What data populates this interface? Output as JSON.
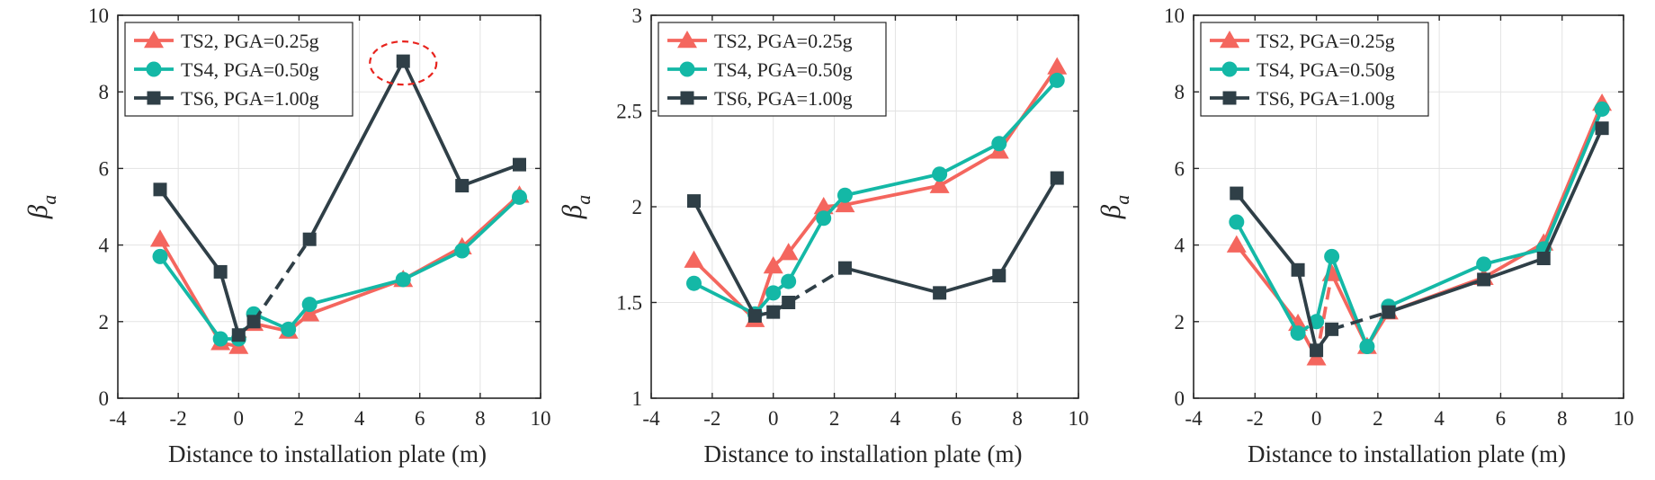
{
  "colors": {
    "TS2": "#f4665e",
    "TS4": "#14b8a6",
    "TS6": "#2f3f47",
    "annotation": "#e8231d",
    "grid": "#e3e3e3",
    "axis": "#262626"
  },
  "chart_data": [
    {
      "type": "line",
      "xlabel": "Distance to installation plate (m)",
      "ylabel": "β",
      "ylabel_sub": "a",
      "xlim": [
        -4,
        10
      ],
      "ylim": [
        0,
        10
      ],
      "xticks": [
        "-4",
        "-2",
        "0",
        "2",
        "4",
        "6",
        "8",
        "10"
      ],
      "yticks": [
        "0",
        "2",
        "4",
        "6",
        "8",
        "10"
      ],
      "grid": true,
      "legend_position": "top-left",
      "annotation": "dashed red circle around the TS6 peak at x ≈ 5.4",
      "series": [
        {
          "name": "TS2, PGA=0.25g",
          "marker": "triangle",
          "color_key": "TS2",
          "x": [
            -2.6,
            -0.6,
            0,
            0.5,
            1.65,
            2.35,
            5.45,
            7.4,
            9.3
          ],
          "y": [
            4.15,
            1.45,
            1.35,
            1.95,
            1.75,
            2.2,
            3.1,
            3.95,
            5.3
          ],
          "dashed_segments": [
            2
          ]
        },
        {
          "name": "TS4, PGA=0.50g",
          "marker": "circle",
          "color_key": "TS4",
          "x": [
            -2.6,
            -0.6,
            0,
            0.5,
            1.65,
            2.35,
            5.45,
            7.4,
            9.3
          ],
          "y": [
            3.7,
            1.55,
            1.55,
            2.2,
            1.8,
            2.45,
            3.1,
            3.85,
            5.25
          ],
          "dashed_segments": [
            2
          ]
        },
        {
          "name": "TS6, PGA=1.00g",
          "marker": "square",
          "color_key": "TS6",
          "x": [
            -2.6,
            -0.6,
            0,
            0.5,
            2.35,
            5.45,
            7.4,
            9.3
          ],
          "y": [
            5.45,
            3.3,
            1.65,
            2.0,
            4.15,
            8.8,
            5.55,
            6.1
          ],
          "dashed_segments": [
            2,
            3
          ]
        }
      ]
    },
    {
      "type": "line",
      "xlabel": "Distance to installation plate (m)",
      "ylabel": "β",
      "ylabel_sub": "a",
      "xlim": [
        -4,
        10
      ],
      "ylim": [
        1,
        3
      ],
      "xticks": [
        "-4",
        "-2",
        "0",
        "2",
        "4",
        "6",
        "8",
        "10"
      ],
      "yticks": [
        "1",
        "1.5",
        "2",
        "2.5",
        "3"
      ],
      "grid": true,
      "legend_position": "top-left",
      "series": [
        {
          "name": "TS2, PGA=0.25g",
          "marker": "triangle",
          "color_key": "TS2",
          "x": [
            -2.6,
            -0.6,
            0,
            0.5,
            1.65,
            2.35,
            5.45,
            7.4,
            9.3
          ],
          "y": [
            1.72,
            1.41,
            1.69,
            1.76,
            2.0,
            2.01,
            2.11,
            2.29,
            2.73
          ],
          "dashed_segments": []
        },
        {
          "name": "TS4, PGA=0.50g",
          "marker": "circle",
          "color_key": "TS4",
          "x": [
            -2.6,
            -0.6,
            0,
            0.5,
            1.65,
            2.35,
            5.45,
            7.4,
            9.3
          ],
          "y": [
            1.6,
            1.44,
            1.55,
            1.61,
            1.94,
            2.06,
            2.17,
            2.33,
            2.66
          ],
          "dashed_segments": [
            2
          ]
        },
        {
          "name": "TS6, PGA=1.00g",
          "marker": "square",
          "color_key": "TS6",
          "x": [
            -2.6,
            -0.6,
            0,
            0.5,
            2.35,
            5.45,
            7.4,
            9.3
          ],
          "y": [
            2.03,
            1.43,
            1.45,
            1.5,
            1.68,
            1.55,
            1.64,
            2.15
          ],
          "dashed_segments": [
            3
          ]
        }
      ]
    },
    {
      "type": "line",
      "xlabel": "Distance to installation plate (m)",
      "ylabel": "β",
      "ylabel_sub": "a",
      "xlim": [
        -4,
        10
      ],
      "ylim": [
        0,
        10
      ],
      "xticks": [
        "-4",
        "-2",
        "0",
        "2",
        "4",
        "6",
        "8",
        "10"
      ],
      "yticks": [
        "0",
        "2",
        "4",
        "6",
        "8",
        "10"
      ],
      "grid": true,
      "legend_position": "top-left",
      "series": [
        {
          "name": "TS2, PGA=0.25g",
          "marker": "triangle",
          "color_key": "TS2",
          "x": [
            -2.6,
            -0.6,
            0,
            0.5,
            1.65,
            2.35,
            5.45,
            7.4,
            9.3
          ],
          "y": [
            4.0,
            1.95,
            1.05,
            3.25,
            1.35,
            2.25,
            3.15,
            4.05,
            7.7
          ],
          "dashed_segments": [
            2
          ]
        },
        {
          "name": "TS4, PGA=0.50g",
          "marker": "circle",
          "color_key": "TS4",
          "x": [
            -2.6,
            -0.6,
            0,
            0.5,
            1.65,
            2.35,
            5.45,
            7.4,
            9.3
          ],
          "y": [
            4.6,
            1.7,
            2.0,
            3.7,
            1.35,
            2.4,
            3.5,
            3.9,
            7.55
          ],
          "dashed_segments": [
            1
          ]
        },
        {
          "name": "TS6, PGA=1.00g",
          "marker": "square",
          "color_key": "TS6",
          "x": [
            -2.6,
            -0.6,
            0,
            0.5,
            2.35,
            5.45,
            7.4,
            9.3
          ],
          "y": [
            5.35,
            3.35,
            1.25,
            1.8,
            2.25,
            3.1,
            3.65,
            7.05
          ],
          "dashed_segments": [
            3
          ]
        }
      ]
    }
  ]
}
